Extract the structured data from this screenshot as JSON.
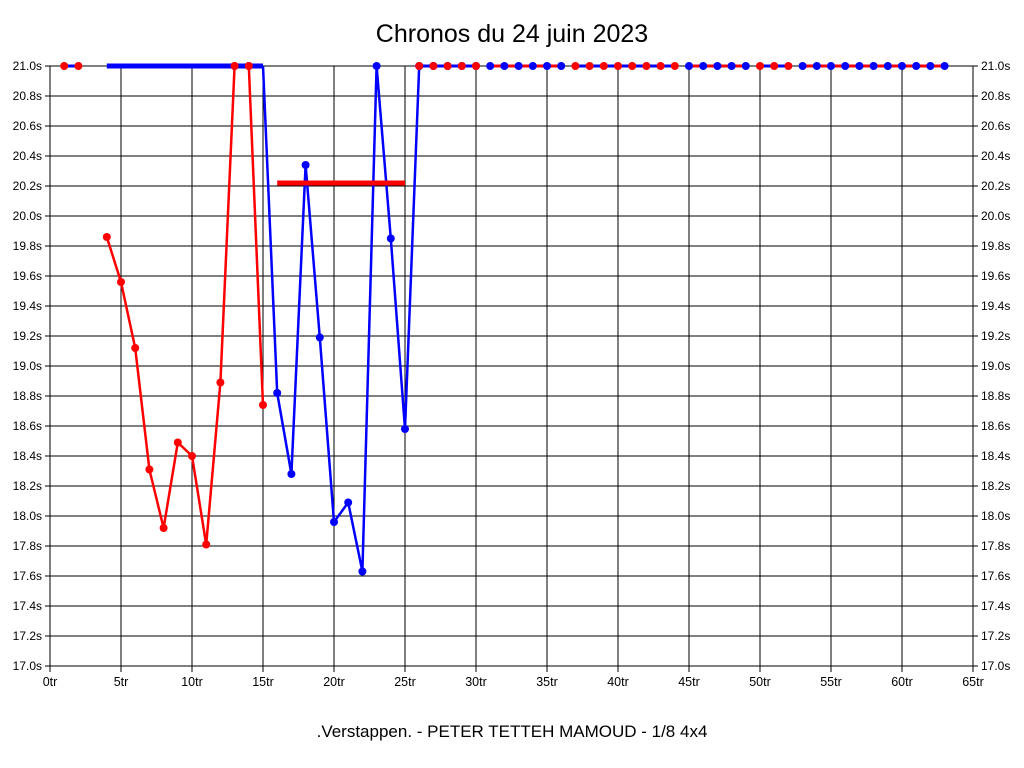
{
  "page": {
    "background": "#ffffff",
    "text_color": "#000000"
  },
  "header": {
    "title": "Chronos du 24 juin 2023"
  },
  "footer": {
    "caption": ".Verstappen. - PETER TETTEH MAMOUD - 1/8 4x4"
  },
  "chart_data": {
    "type": "line",
    "title": "Chronos du 24 juin 2023",
    "footer": ".Verstappen. - PETER TETTEH MAMOUD - 1/8 4x4",
    "grid": true,
    "legend": "none",
    "colors": {
      "red": "#ff0000",
      "blue": "#0000ff",
      "grid": "#000000"
    },
    "x_axis": {
      "unit": "tr",
      "min": 0,
      "max": 65,
      "tick_step": 5,
      "tick_labels": [
        "0tr",
        "5tr",
        "10tr",
        "15tr",
        "20tr",
        "25tr",
        "30tr",
        "35tr",
        "40tr",
        "45tr",
        "50tr",
        "55tr",
        "60tr",
        "65tr"
      ]
    },
    "y_axis": {
      "unit": "s",
      "min": 17.0,
      "max": 21.0,
      "tick_step": 0.2,
      "tick_labels": [
        "21.0s",
        "20.8s",
        "20.6s",
        "20.4s",
        "20.2s",
        "20.0s",
        "19.8s",
        "19.6s",
        "19.4s",
        "19.2s",
        "19.0s",
        "18.8s",
        "18.6s",
        "18.4s",
        "18.2s",
        "18.0s",
        "17.8s",
        "17.6s",
        "17.4s",
        "17.2s",
        "17.0s"
      ]
    },
    "series": [
      {
        "name": ".Verstappen.",
        "color": "#ff0000",
        "marker": "dot",
        "lap_times": [
          [
            1,
            21.0
          ],
          [
            2,
            21.0
          ],
          [
            4,
            19.86
          ],
          [
            5,
            19.56
          ],
          [
            6,
            19.12
          ],
          [
            7,
            18.31
          ],
          [
            8,
            17.92
          ],
          [
            9,
            18.49
          ],
          [
            10,
            18.4
          ],
          [
            11,
            17.81
          ],
          [
            12,
            18.89
          ],
          [
            13,
            21.0
          ],
          [
            14,
            21.0
          ],
          [
            15,
            18.74
          ]
        ],
        "constant_runs": [
          {
            "laps": [
              16,
              25
            ],
            "time": 20.22,
            "style": "thick-no-markers"
          },
          {
            "laps": [
              26,
              63
            ],
            "time": 21.0,
            "style": "markers"
          }
        ]
      },
      {
        "name": "PETER TETTEH MAMOUD",
        "color": "#0000ff",
        "marker": "dot",
        "lap_times": [
          [
            1,
            21.0
          ],
          [
            2,
            21.0
          ],
          [
            16,
            18.82
          ],
          [
            17,
            18.28
          ],
          [
            18,
            20.34
          ],
          [
            19,
            19.19
          ],
          [
            20,
            17.96
          ],
          [
            21,
            18.09
          ],
          [
            22,
            17.63
          ],
          [
            23,
            21.0
          ],
          [
            24,
            19.85
          ],
          [
            25,
            18.58
          ]
        ],
        "constant_runs": [
          {
            "laps": [
              4,
              15
            ],
            "time": 21.0,
            "style": "thick-no-markers"
          },
          {
            "laps": [
              26,
              63
            ],
            "time": 21.0,
            "style": "markers"
          }
        ]
      }
    ],
    "layers": [
      {
        "s": "red",
        "draw": "line",
        "lw": 3,
        "pts": [
          [
            1,
            21
          ],
          [
            2,
            21
          ]
        ]
      },
      {
        "s": "blue",
        "draw": "line",
        "lw": 3,
        "pts": [
          [
            1,
            21
          ],
          [
            2,
            21
          ]
        ]
      },
      {
        "s": "red",
        "draw": "markers",
        "pts": [
          [
            1,
            21
          ],
          [
            2,
            21
          ]
        ]
      },
      {
        "s": "red",
        "draw": "line+markers",
        "lw": 2.5,
        "pts": [
          [
            4,
            19.86
          ],
          [
            5,
            19.56
          ],
          [
            6,
            19.12
          ],
          [
            7,
            18.31
          ],
          [
            8,
            17.92
          ],
          [
            9,
            18.49
          ],
          [
            10,
            18.4
          ],
          [
            11,
            17.81
          ],
          [
            12,
            18.89
          ],
          [
            13,
            21
          ],
          [
            14,
            21
          ],
          [
            15,
            18.74
          ]
        ]
      },
      {
        "s": "blue",
        "draw": "line",
        "lw": 5,
        "pts": [
          [
            4,
            21
          ],
          [
            15,
            21
          ]
        ]
      },
      {
        "s": "red",
        "draw": "markers",
        "pts": [
          [
            13,
            21
          ],
          [
            14,
            21
          ]
        ]
      },
      {
        "s": "blue",
        "draw": "line+markers",
        "lw": 2.5,
        "pts": [
          [
            15,
            21,
            0
          ],
          [
            16,
            18.82
          ],
          [
            17,
            18.28
          ],
          [
            18,
            20.34
          ],
          [
            19,
            19.19
          ],
          [
            20,
            17.96
          ],
          [
            21,
            18.09
          ],
          [
            22,
            17.63
          ],
          [
            23,
            21
          ],
          [
            24,
            19.85
          ],
          [
            25,
            18.58
          ],
          [
            26,
            21
          ]
        ]
      },
      {
        "s": "blue",
        "draw": "line+markers",
        "lw": 3,
        "pts": [
          [
            26,
            21
          ],
          [
            27,
            21
          ],
          [
            28,
            21
          ],
          [
            29,
            21
          ],
          [
            30,
            21
          ]
        ]
      },
      {
        "s": "red",
        "draw": "line",
        "lw": 5,
        "pts": [
          [
            16,
            20.22
          ],
          [
            25,
            20.22
          ]
        ]
      },
      {
        "s": "red",
        "draw": "markers",
        "pts": [
          [
            26,
            21
          ],
          [
            27,
            21
          ],
          [
            28,
            21
          ],
          [
            29,
            21
          ],
          [
            30,
            21
          ]
        ]
      },
      {
        "s": "red",
        "draw": "line",
        "lw": 3,
        "pts": [
          [
            31,
            21
          ],
          [
            36,
            21
          ]
        ]
      },
      {
        "s": "blue",
        "draw": "markers",
        "pts": [
          [
            31,
            21
          ],
          [
            32,
            21
          ],
          [
            33,
            21
          ],
          [
            34,
            21
          ],
          [
            35,
            21
          ],
          [
            36,
            21
          ]
        ]
      },
      {
        "s": "blue",
        "draw": "line",
        "lw": 3,
        "pts": [
          [
            37,
            21
          ],
          [
            44,
            21
          ]
        ]
      },
      {
        "s": "red",
        "draw": "markers",
        "pts": [
          [
            37,
            21
          ],
          [
            38,
            21
          ],
          [
            39,
            21
          ],
          [
            40,
            21
          ],
          [
            41,
            21
          ],
          [
            42,
            21
          ],
          [
            43,
            21
          ],
          [
            44,
            21
          ]
        ]
      },
      {
        "s": "red",
        "draw": "line",
        "lw": 3,
        "pts": [
          [
            45,
            21
          ],
          [
            49,
            21
          ]
        ]
      },
      {
        "s": "blue",
        "draw": "markers",
        "pts": [
          [
            45,
            21
          ],
          [
            46,
            21
          ],
          [
            47,
            21
          ],
          [
            48,
            21
          ],
          [
            49,
            21
          ]
        ]
      },
      {
        "s": "blue",
        "draw": "line",
        "lw": 3,
        "pts": [
          [
            50,
            21
          ],
          [
            52,
            21
          ]
        ]
      },
      {
        "s": "red",
        "draw": "markers",
        "pts": [
          [
            50,
            21
          ],
          [
            51,
            21
          ],
          [
            52,
            21
          ]
        ]
      },
      {
        "s": "red",
        "draw": "line",
        "lw": 3,
        "pts": [
          [
            53,
            21
          ],
          [
            63,
            21
          ]
        ]
      },
      {
        "s": "blue",
        "draw": "markers",
        "pts": [
          [
            53,
            21
          ],
          [
            54,
            21
          ],
          [
            55,
            21
          ],
          [
            56,
            21
          ],
          [
            57,
            21
          ],
          [
            58,
            21
          ],
          [
            59,
            21
          ],
          [
            60,
            21
          ],
          [
            61,
            21
          ],
          [
            62,
            21
          ],
          [
            63,
            21
          ]
        ]
      }
    ]
  }
}
